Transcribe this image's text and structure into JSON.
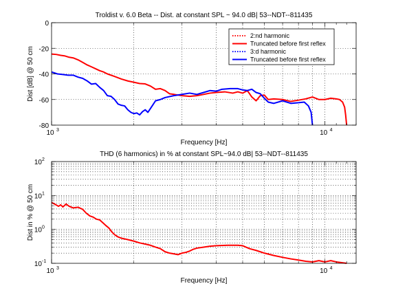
{
  "chart_data": [
    {
      "type": "line",
      "title": "Troldist v. 6.0 Beta -- Dist. at constant SPL ~ 94.0 dB| 53--NDT--811435",
      "xlabel": "Frequency [Hz]",
      "ylabel": "Dist [dB] @ 50 cm",
      "x_scale": "log",
      "xlim": [
        1000,
        13000
      ],
      "ylim": [
        -80,
        0
      ],
      "grid": true,
      "x_ticks": [
        {
          "value": 1000,
          "base": "10",
          "exp": "3"
        },
        {
          "value": 10000,
          "base": "10",
          "exp": "4"
        }
      ],
      "y_ticks": [
        {
          "value": 0,
          "label": "0"
        },
        {
          "value": -20,
          "label": "-20"
        },
        {
          "value": -40,
          "label": "-40"
        },
        {
          "value": -60,
          "label": "-60"
        },
        {
          "value": -80,
          "label": "-80"
        }
      ],
      "legend_position": "top-right",
      "legend": [
        {
          "name": "2:nd harmonic",
          "color": "#ff0000",
          "style": "dotted"
        },
        {
          "name": "Truncated before first reflex",
          "color": "#ff0000",
          "style": "solid"
        },
        {
          "name": "3:d harmonic",
          "color": "#0000ff",
          "style": "dotted"
        },
        {
          "name": "Truncated before first reflex",
          "color": "#0000ff",
          "style": "solid"
        }
      ],
      "series": [
        {
          "color": "#ff0000",
          "points": [
            [
              1000,
              -24.5
            ],
            [
              1040,
              -24.8
            ],
            [
              1080,
              -25.5
            ],
            [
              1120,
              -26
            ],
            [
              1160,
              -27
            ],
            [
              1200,
              -27.5
            ],
            [
              1250,
              -29
            ],
            [
              1300,
              -31
            ],
            [
              1350,
              -33
            ],
            [
              1400,
              -34.5
            ],
            [
              1450,
              -36
            ],
            [
              1500,
              -37.5
            ],
            [
              1550,
              -38.5
            ],
            [
              1600,
              -40
            ],
            [
              1700,
              -42
            ],
            [
              1800,
              -44
            ],
            [
              1900,
              -45.5
            ],
            [
              2000,
              -46.5
            ],
            [
              2100,
              -47.5
            ],
            [
              2200,
              -47.8
            ],
            [
              2300,
              -49.5
            ],
            [
              2400,
              -52
            ],
            [
              2500,
              -51.5
            ],
            [
              2600,
              -53
            ],
            [
              2700,
              -55.5
            ],
            [
              2800,
              -56
            ],
            [
              2900,
              -56.5
            ],
            [
              3000,
              -57
            ],
            [
              3200,
              -57.5
            ],
            [
              3400,
              -57
            ],
            [
              3600,
              -56
            ],
            [
              3800,
              -55
            ],
            [
              4000,
              -54.5
            ],
            [
              4300,
              -54
            ],
            [
              4600,
              -55
            ],
            [
              4800,
              -54
            ],
            [
              5000,
              -55
            ],
            [
              5200,
              -53
            ],
            [
              5400,
              -58
            ],
            [
              5600,
              -61
            ],
            [
              5800,
              -57
            ],
            [
              6000,
              -56.5
            ],
            [
              6200,
              -60
            ],
            [
              6500,
              -59.5
            ],
            [
              7000,
              -60
            ],
            [
              7500,
              -61.5
            ],
            [
              8000,
              -60.5
            ],
            [
              8500,
              -59.5
            ],
            [
              9000,
              -58
            ],
            [
              9500,
              -60
            ],
            [
              10000,
              -60
            ],
            [
              10500,
              -59
            ],
            [
              11000,
              -59.5
            ],
            [
              11300,
              -60
            ],
            [
              11600,
              -62
            ],
            [
              11800,
              -66
            ],
            [
              11900,
              -72
            ],
            [
              12000,
              -80
            ]
          ]
        },
        {
          "color": "#0000ff",
          "points": [
            [
              1000,
              -38.5
            ],
            [
              1050,
              -40
            ],
            [
              1100,
              -40.5
            ],
            [
              1150,
              -41
            ],
            [
              1200,
              -41
            ],
            [
              1250,
              -42.5
            ],
            [
              1300,
              -43.5
            ],
            [
              1350,
              -45.5
            ],
            [
              1400,
              -48
            ],
            [
              1450,
              -47.5
            ],
            [
              1500,
              -50.5
            ],
            [
              1550,
              -53
            ],
            [
              1600,
              -57
            ],
            [
              1650,
              -57.5
            ],
            [
              1700,
              -60
            ],
            [
              1750,
              -63.5
            ],
            [
              1800,
              -64.5
            ],
            [
              1850,
              -65
            ],
            [
              1900,
              -68
            ],
            [
              1950,
              -70
            ],
            [
              2000,
              -71
            ],
            [
              2050,
              -70.5
            ],
            [
              2100,
              -72
            ],
            [
              2150,
              -69.5
            ],
            [
              2200,
              -68
            ],
            [
              2250,
              -70
            ],
            [
              2300,
              -67
            ],
            [
              2350,
              -64
            ],
            [
              2400,
              -61
            ],
            [
              2500,
              -60
            ],
            [
              2600,
              -58.5
            ],
            [
              2800,
              -57
            ],
            [
              3000,
              -56
            ],
            [
              3200,
              -55
            ],
            [
              3400,
              -56
            ],
            [
              3600,
              -54.5
            ],
            [
              3800,
              -53
            ],
            [
              4000,
              -53.5
            ],
            [
              4200,
              -52
            ],
            [
              4500,
              -51.5
            ],
            [
              4800,
              -51.5
            ],
            [
              5000,
              -52.5
            ],
            [
              5200,
              -53
            ],
            [
              5400,
              -52
            ],
            [
              5600,
              -54.5
            ],
            [
              5800,
              -55.5
            ],
            [
              6000,
              -59
            ],
            [
              6200,
              -62
            ],
            [
              6500,
              -63
            ],
            [
              7000,
              -61
            ],
            [
              7500,
              -63
            ],
            [
              8000,
              -62.5
            ],
            [
              8400,
              -62
            ],
            [
              8700,
              -65
            ],
            [
              8900,
              -70
            ],
            [
              9000,
              -80
            ]
          ]
        }
      ]
    },
    {
      "type": "line",
      "title": "THD (6 harmonics) in % at constant SPL~94.0 dB| 53--NDT--811435",
      "xlabel": "Frequency [Hz]",
      "ylabel": "Dist in % @ 50 cm",
      "x_scale": "log",
      "y_scale": "log",
      "xlim": [
        1000,
        13000
      ],
      "ylim": [
        0.1,
        100
      ],
      "grid": true,
      "x_ticks": [
        {
          "value": 1000,
          "base": "10",
          "exp": "3"
        },
        {
          "value": 10000,
          "base": "10",
          "exp": "4"
        }
      ],
      "y_ticks": [
        {
          "value": 0.1,
          "base": "10",
          "exp": "-1"
        },
        {
          "value": 1,
          "base": "10",
          "exp": "0"
        },
        {
          "value": 10,
          "base": "10",
          "exp": "1"
        },
        {
          "value": 100,
          "base": "10",
          "exp": "2"
        }
      ],
      "series": [
        {
          "color": "#ff0000",
          "points": [
            [
              1000,
              6.2
            ],
            [
              1030,
              5.5
            ],
            [
              1060,
              4.8
            ],
            [
              1080,
              5.3
            ],
            [
              1100,
              4.6
            ],
            [
              1130,
              5.6
            ],
            [
              1160,
              4.8
            ],
            [
              1200,
              4.3
            ],
            [
              1250,
              4.5
            ],
            [
              1300,
              3.9
            ],
            [
              1340,
              3.0
            ],
            [
              1380,
              2.5
            ],
            [
              1420,
              2.3
            ],
            [
              1460,
              2.0
            ],
            [
              1500,
              1.9
            ],
            [
              1550,
              1.5
            ],
            [
              1580,
              1.3
            ],
            [
              1620,
              1.1
            ],
            [
              1660,
              0.85
            ],
            [
              1700,
              0.7
            ],
            [
              1750,
              0.6
            ],
            [
              1800,
              0.55
            ],
            [
              1900,
              0.5
            ],
            [
              2000,
              0.45
            ],
            [
              2100,
              0.4
            ],
            [
              2200,
              0.37
            ],
            [
              2300,
              0.34
            ],
            [
              2400,
              0.3
            ],
            [
              2500,
              0.27
            ],
            [
              2600,
              0.22
            ],
            [
              2700,
              0.2
            ],
            [
              2800,
              0.19
            ],
            [
              2900,
              0.18
            ],
            [
              3000,
              0.2
            ],
            [
              3100,
              0.21
            ],
            [
              3200,
              0.23
            ],
            [
              3300,
              0.26
            ],
            [
              3400,
              0.28
            ],
            [
              3600,
              0.3
            ],
            [
              3800,
              0.32
            ],
            [
              4000,
              0.33
            ],
            [
              4400,
              0.34
            ],
            [
              4800,
              0.34
            ],
            [
              5000,
              0.33
            ],
            [
              5300,
              0.27
            ],
            [
              5600,
              0.24
            ],
            [
              6000,
              0.2
            ],
            [
              6500,
              0.17
            ],
            [
              7000,
              0.15
            ],
            [
              7500,
              0.135
            ],
            [
              8000,
              0.125
            ],
            [
              8500,
              0.115
            ],
            [
              9000,
              0.11
            ],
            [
              9500,
              0.12
            ],
            [
              10000,
              0.11
            ],
            [
              10500,
              0.12
            ],
            [
              11000,
              0.11
            ],
            [
              11500,
              0.105
            ],
            [
              12000,
              0.1
            ]
          ]
        }
      ]
    }
  ]
}
